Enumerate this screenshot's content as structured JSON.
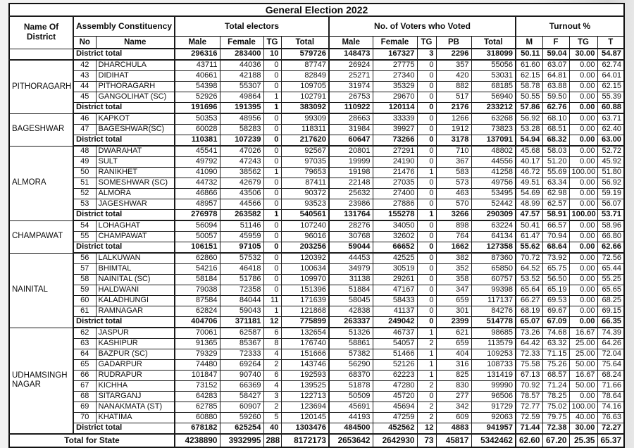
{
  "title": "General Election 2022",
  "header": {
    "district": "Name Of District",
    "groups": [
      {
        "label": "Assembly Constituency",
        "cols": [
          "No",
          "Name"
        ]
      },
      {
        "label": "Total electors",
        "cols": [
          "Male",
          "Female",
          "TG",
          "Total"
        ]
      },
      {
        "label": "No. of Voters who Voted",
        "cols": [
          "Male",
          "Female",
          "TG",
          "PB",
          "Total"
        ]
      },
      {
        "label": "Turnout %",
        "cols": [
          "M",
          "F",
          "TG",
          "T"
        ]
      }
    ]
  },
  "district_total_label": "District total",
  "state_total_label": "Total for State",
  "groups": [
    {
      "district": "",
      "rows": [],
      "total": [
        "296316",
        "283400",
        "10",
        "579726",
        "148473",
        "167327",
        "3",
        "2296",
        "318099",
        "50.11",
        "59.04",
        "30.00",
        "54.87"
      ]
    },
    {
      "district": "PITHORAGARH",
      "rows": [
        {
          "no": "42",
          "name": "DHARCHULA",
          "v": [
            "43711",
            "44036",
            "0",
            "87747",
            "26924",
            "27775",
            "0",
            "357",
            "55056",
            "61.60",
            "63.07",
            "0.00",
            "62.74"
          ]
        },
        {
          "no": "43",
          "name": "DIDIHAT",
          "v": [
            "40661",
            "42188",
            "0",
            "82849",
            "25271",
            "27340",
            "0",
            "420",
            "53031",
            "62.15",
            "64.81",
            "0.00",
            "64.01"
          ]
        },
        {
          "no": "44",
          "name": "PITHORAGARH",
          "v": [
            "54398",
            "55307",
            "0",
            "109705",
            "31974",
            "35329",
            "0",
            "882",
            "68185",
            "58.78",
            "63.88",
            "0.00",
            "62.15"
          ]
        },
        {
          "no": "45",
          "name": "GANGOLIHAT (SC)",
          "v": [
            "52926",
            "49864",
            "1",
            "102791",
            "26753",
            "29670",
            "0",
            "517",
            "56940",
            "50.55",
            "59.50",
            "0.00",
            "55.39"
          ]
        }
      ],
      "total": [
        "191696",
        "191395",
        "1",
        "383092",
        "110922",
        "120114",
        "0",
        "2176",
        "233212",
        "57.86",
        "62.76",
        "0.00",
        "60.88"
      ]
    },
    {
      "district": "BAGESHWAR",
      "rows": [
        {
          "no": "46",
          "name": "KAPKOT",
          "v": [
            "50353",
            "48956",
            "0",
            "99309",
            "28663",
            "33339",
            "0",
            "1266",
            "63268",
            "56.92",
            "68.10",
            "0.00",
            "63.71"
          ]
        },
        {
          "no": "47",
          "name": "BAGESHWAR(SC)",
          "v": [
            "60028",
            "58283",
            "0",
            "118311",
            "31984",
            "39927",
            "0",
            "1912",
            "73823",
            "53.28",
            "68.51",
            "0.00",
            "62.40"
          ]
        }
      ],
      "total": [
        "110381",
        "107239",
        "0",
        "217620",
        "60647",
        "73266",
        "0",
        "3178",
        "137091",
        "54.94",
        "68.32",
        "0.00",
        "63.00"
      ]
    },
    {
      "district": "ALMORA",
      "rows": [
        {
          "no": "48",
          "name": "DWARAHAT",
          "v": [
            "45541",
            "47026",
            "0",
            "92567",
            "20801",
            "27291",
            "0",
            "710",
            "48802",
            "45.68",
            "58.03",
            "0.00",
            "52.72"
          ]
        },
        {
          "no": "49",
          "name": "SULT",
          "v": [
            "49792",
            "47243",
            "0",
            "97035",
            "19999",
            "24190",
            "0",
            "367",
            "44556",
            "40.17",
            "51.20",
            "0.00",
            "45.92"
          ]
        },
        {
          "no": "50",
          "name": "RANIKHET",
          "v": [
            "41090",
            "38562",
            "1",
            "79653",
            "19198",
            "21476",
            "1",
            "583",
            "41258",
            "46.72",
            "55.69",
            "100.00",
            "51.80"
          ]
        },
        {
          "no": "51",
          "name": "SOMESHWAR (SC)",
          "v": [
            "44732",
            "42679",
            "0",
            "87411",
            "22148",
            "27035",
            "0",
            "573",
            "49756",
            "49.51",
            "63.34",
            "0.00",
            "56.92"
          ]
        },
        {
          "no": "52",
          "name": "ALMORA",
          "v": [
            "46866",
            "43506",
            "0",
            "90372",
            "25632",
            "27400",
            "0",
            "463",
            "53495",
            "54.69",
            "62.98",
            "0.00",
            "59.19"
          ]
        },
        {
          "no": "53",
          "name": "JAGESHWAR",
          "v": [
            "48957",
            "44566",
            "0",
            "93523",
            "23986",
            "27886",
            "0",
            "570",
            "52442",
            "48.99",
            "62.57",
            "0.00",
            "56.07"
          ]
        }
      ],
      "total": [
        "276978",
        "263582",
        "1",
        "540561",
        "131764",
        "155278",
        "1",
        "3266",
        "290309",
        "47.57",
        "58.91",
        "100.00",
        "53.71"
      ]
    },
    {
      "district": "CHAMPAWAT",
      "rows": [
        {
          "no": "54",
          "name": "LOHAGHAT",
          "v": [
            "56094",
            "51146",
            "0",
            "107240",
            "28276",
            "34050",
            "0",
            "898",
            "63224",
            "50.41",
            "66.57",
            "0.00",
            "58.96"
          ]
        },
        {
          "no": "55",
          "name": "CHAMPAWAT",
          "v": [
            "50057",
            "45959",
            "0",
            "96016",
            "30768",
            "32602",
            "0",
            "764",
            "64134",
            "61.47",
            "70.94",
            "0.00",
            "66.80"
          ]
        }
      ],
      "total": [
        "106151",
        "97105",
        "0",
        "203256",
        "59044",
        "66652",
        "0",
        "1662",
        "127358",
        "55.62",
        "68.64",
        "0.00",
        "62.66"
      ]
    },
    {
      "district": "NAINITAL",
      "rows": [
        {
          "no": "56",
          "name": "LALKUWAN",
          "v": [
            "62860",
            "57532",
            "0",
            "120392",
            "44453",
            "42525",
            "0",
            "382",
            "87360",
            "70.72",
            "73.92",
            "0.00",
            "72.56"
          ]
        },
        {
          "no": "57",
          "name": "BHIMTAL",
          "v": [
            "54216",
            "46418",
            "0",
            "100634",
            "34979",
            "30519",
            "0",
            "352",
            "65850",
            "64.52",
            "65.75",
            "0.00",
            "65.44"
          ]
        },
        {
          "no": "58",
          "name": "NAINITAL (SC)",
          "v": [
            "58184",
            "51786",
            "0",
            "109970",
            "31138",
            "29261",
            "0",
            "358",
            "60757",
            "53.52",
            "56.50",
            "0.00",
            "55.25"
          ]
        },
        {
          "no": "59",
          "name": "HALDWANI",
          "v": [
            "79038",
            "72358",
            "0",
            "151396",
            "51884",
            "47167",
            "0",
            "347",
            "99398",
            "65.64",
            "65.19",
            "0.00",
            "65.65"
          ]
        },
        {
          "no": "60",
          "name": "KALADHUNGI",
          "v": [
            "87584",
            "84044",
            "11",
            "171639",
            "58045",
            "58433",
            "0",
            "659",
            "117137",
            "66.27",
            "69.53",
            "0.00",
            "68.25"
          ]
        },
        {
          "no": "61",
          "name": "RAMNAGAR",
          "v": [
            "62824",
            "59043",
            "1",
            "121868",
            "42838",
            "41137",
            "0",
            "301",
            "84276",
            "68.19",
            "69.67",
            "0.00",
            "69.15"
          ]
        }
      ],
      "total": [
        "404706",
        "371181",
        "12",
        "775899",
        "263337",
        "249042",
        "0",
        "2399",
        "514778",
        "65.07",
        "67.09",
        "0.00",
        "66.35"
      ]
    },
    {
      "district": "UDHAMSINGH NAGAR",
      "rows": [
        {
          "no": "62",
          "name": "JASPUR",
          "v": [
            "70061",
            "62587",
            "6",
            "132654",
            "51326",
            "46737",
            "1",
            "621",
            "98685",
            "73.26",
            "74.68",
            "16.67",
            "74.39"
          ]
        },
        {
          "no": "63",
          "name": "KASHIPUR",
          "v": [
            "91365",
            "85367",
            "8",
            "176740",
            "58861",
            "54057",
            "2",
            "659",
            "113579",
            "64.42",
            "63.32",
            "25.00",
            "64.26"
          ]
        },
        {
          "no": "64",
          "name": "BAZPUR (SC)",
          "v": [
            "79329",
            "72333",
            "4",
            "151666",
            "57382",
            "51466",
            "1",
            "404",
            "109253",
            "72.33",
            "71.15",
            "25.00",
            "72.04"
          ]
        },
        {
          "no": "65",
          "name": "GADARPUR",
          "v": [
            "74480",
            "69264",
            "2",
            "143746",
            "56290",
            "52126",
            "1",
            "316",
            "108733",
            "75.58",
            "75.26",
            "50.00",
            "75.64"
          ]
        },
        {
          "no": "66",
          "name": "RUDRAPUR",
          "v": [
            "101847",
            "90740",
            "6",
            "192593",
            "68370",
            "62223",
            "1",
            "825",
            "131419",
            "67.13",
            "68.57",
            "16.67",
            "68.24"
          ]
        },
        {
          "no": "67",
          "name": "KICHHA",
          "v": [
            "73152",
            "66369",
            "4",
            "139525",
            "51878",
            "47280",
            "2",
            "830",
            "99990",
            "70.92",
            "71.24",
            "50.00",
            "71.66"
          ]
        },
        {
          "no": "68",
          "name": "SITARGANJ",
          "v": [
            "64283",
            "58427",
            "3",
            "122713",
            "50509",
            "45720",
            "0",
            "277",
            "96506",
            "78.57",
            "78.25",
            "0.00",
            "78.64"
          ]
        },
        {
          "no": "69",
          "name": "NANAKMATA (ST)",
          "v": [
            "62785",
            "60907",
            "2",
            "123694",
            "45691",
            "45694",
            "2",
            "342",
            "91729",
            "72.77",
            "75.02",
            "100.00",
            "74.16"
          ]
        },
        {
          "no": "70",
          "name": "KHATIMA",
          "v": [
            "60880",
            "59260",
            "5",
            "120145",
            "44193",
            "47259",
            "2",
            "609",
            "92063",
            "72.59",
            "79.75",
            "40.00",
            "76.63"
          ]
        }
      ],
      "total": [
        "678182",
        "625254",
        "40",
        "1303476",
        "484500",
        "452562",
        "12",
        "4883",
        "941957",
        "71.44",
        "72.38",
        "30.00",
        "72.27"
      ]
    }
  ],
  "state_total": [
    "4238890",
    "3932995",
    "288",
    "8172173",
    "2653642",
    "2642930",
    "73",
    "45817",
    "5342462",
    "62.60",
    "67.20",
    "25.35",
    "65.37"
  ]
}
